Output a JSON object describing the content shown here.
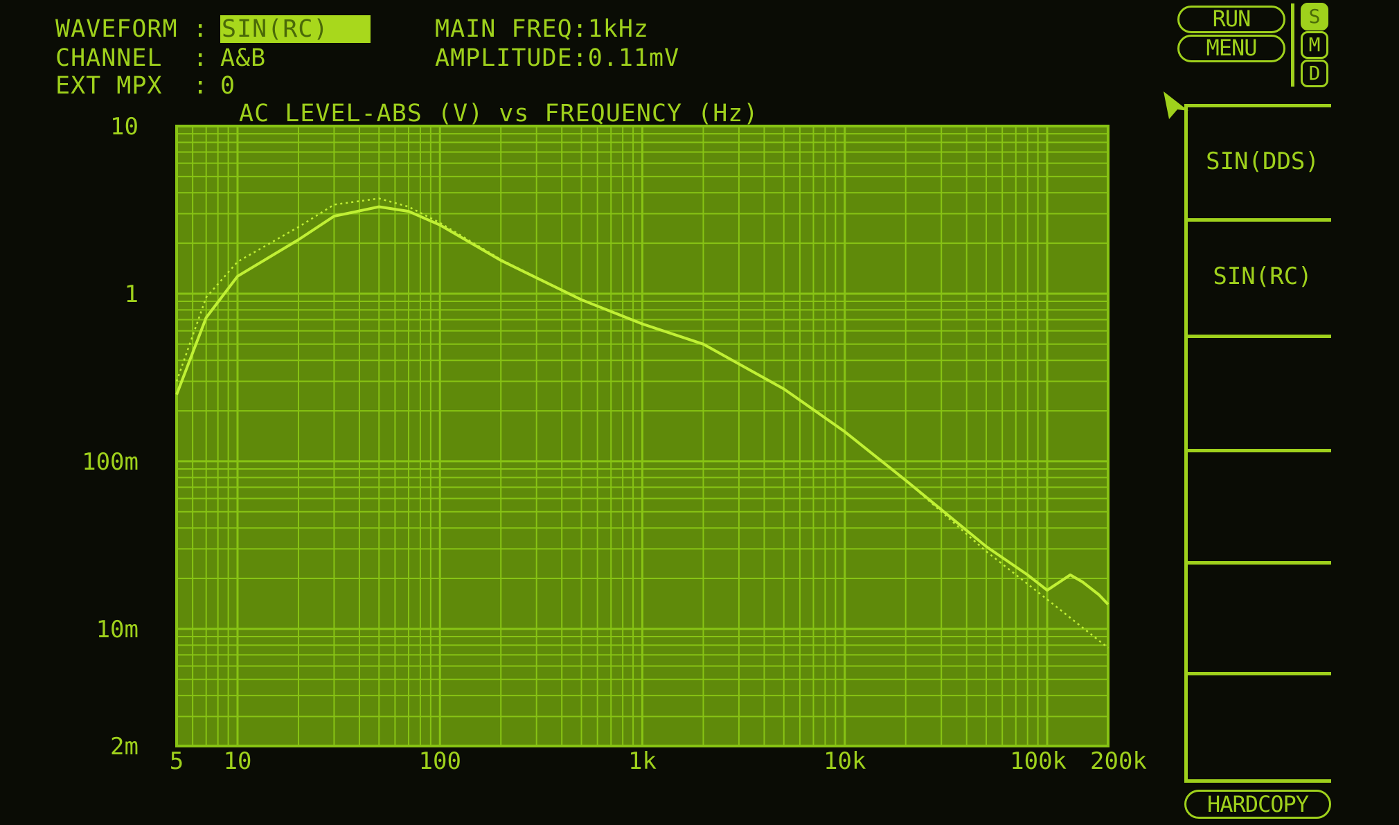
{
  "header": {
    "waveform_label": "WAVEFORM :",
    "waveform_value": "SIN(RC)",
    "channel_label": "CHANNEL  :",
    "channel_value": "A&B",
    "ext_mpx_label": "EXT MPX  :",
    "ext_mpx_value": "0",
    "main_freq": "MAIN FREQ:1kHz",
    "amplitude": "AMPLITUDE:0.11mV"
  },
  "controls": {
    "run": "RUN",
    "menu": "MENU",
    "modes": [
      {
        "label": "S",
        "active": true
      },
      {
        "label": "M",
        "active": false
      },
      {
        "label": "D",
        "active": false
      }
    ],
    "softkeys": [
      "SIN(DDS)",
      "SIN(RC)",
      "",
      "",
      "",
      ""
    ],
    "hardcopy": "HARDCOPY"
  },
  "colors": {
    "background": "#0a0c05",
    "plot_bg": "#5f8a0a",
    "grid": "#88c414",
    "trace": "#c0f034",
    "text": "#9fd11c"
  },
  "chart_data": {
    "type": "line",
    "title": "AC LEVEL-ABS (V) vs FREQUENCY (Hz)",
    "x_scale": "log",
    "y_scale": "log",
    "xlim": [
      5,
      200000
    ],
    "ylim": [
      0.002,
      10
    ],
    "grid": true,
    "x_ticks": [
      {
        "value": 5,
        "label": "5"
      },
      {
        "value": 10,
        "label": "10"
      },
      {
        "value": 100,
        "label": "100"
      },
      {
        "value": 1000,
        "label": "1k"
      },
      {
        "value": 10000,
        "label": "10k"
      },
      {
        "value": 100000,
        "label": "100k"
      },
      {
        "value": 200000,
        "label": "200k"
      }
    ],
    "y_ticks": [
      {
        "value": 10,
        "label": "10"
      },
      {
        "value": 1,
        "label": "1"
      },
      {
        "value": 0.1,
        "label": "100m"
      },
      {
        "value": 0.01,
        "label": "10m"
      },
      {
        "value": 0.002,
        "label": "2m"
      }
    ],
    "series": [
      {
        "style": "solid",
        "x": [
          5,
          7,
          10,
          20,
          30,
          50,
          70,
          100,
          200,
          500,
          1000,
          2000,
          5000,
          10000,
          20000,
          50000,
          80000,
          100000,
          130000,
          150000,
          180000,
          200000
        ],
        "y": [
          0.25,
          0.72,
          1.27,
          2.1,
          2.9,
          3.3,
          3.1,
          2.57,
          1.58,
          0.92,
          0.66,
          0.5,
          0.27,
          0.15,
          0.077,
          0.031,
          0.021,
          0.017,
          0.021,
          0.019,
          0.016,
          0.014
        ]
      },
      {
        "style": "dotted",
        "x": [
          5,
          7,
          10,
          20,
          30,
          50,
          70,
          100,
          200,
          500,
          1000,
          2000,
          5000,
          10000,
          20000,
          50000,
          100000,
          200000
        ],
        "y": [
          0.3,
          0.95,
          1.55,
          2.5,
          3.4,
          3.7,
          3.3,
          2.65,
          1.6,
          0.92,
          0.66,
          0.5,
          0.27,
          0.15,
          0.077,
          0.029,
          0.015,
          0.0077
        ]
      }
    ]
  }
}
